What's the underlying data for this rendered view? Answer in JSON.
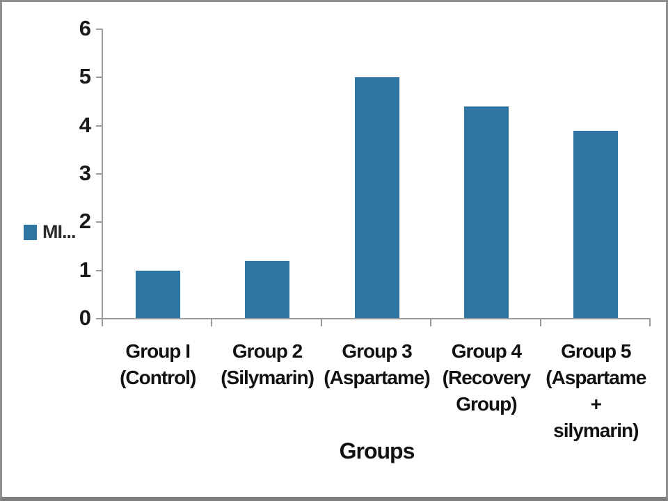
{
  "chart_data": {
    "type": "bar",
    "title": "",
    "xlabel": "Groups",
    "ylabel": "",
    "legend_label": "MI...",
    "legend_position": "left",
    "categories": [
      [
        "Group I",
        "(Control)"
      ],
      [
        "Group 2",
        "(Silymarin)"
      ],
      [
        "Group 3",
        "(Aspartame)"
      ],
      [
        "Group 4",
        "(Recovery",
        "Group)"
      ],
      [
        "Group 5",
        "(Aspartame +",
        "silymarin)"
      ]
    ],
    "values": [
      1.0,
      1.2,
      5.0,
      4.4,
      3.9
    ],
    "ylim": [
      0,
      6
    ],
    "y_ticks": [
      0,
      1,
      2,
      3,
      4,
      5,
      6
    ],
    "grid": false,
    "bar_color": "#2E75A4",
    "axis_color": "#9A9A9A",
    "text_color": "#111111"
  }
}
